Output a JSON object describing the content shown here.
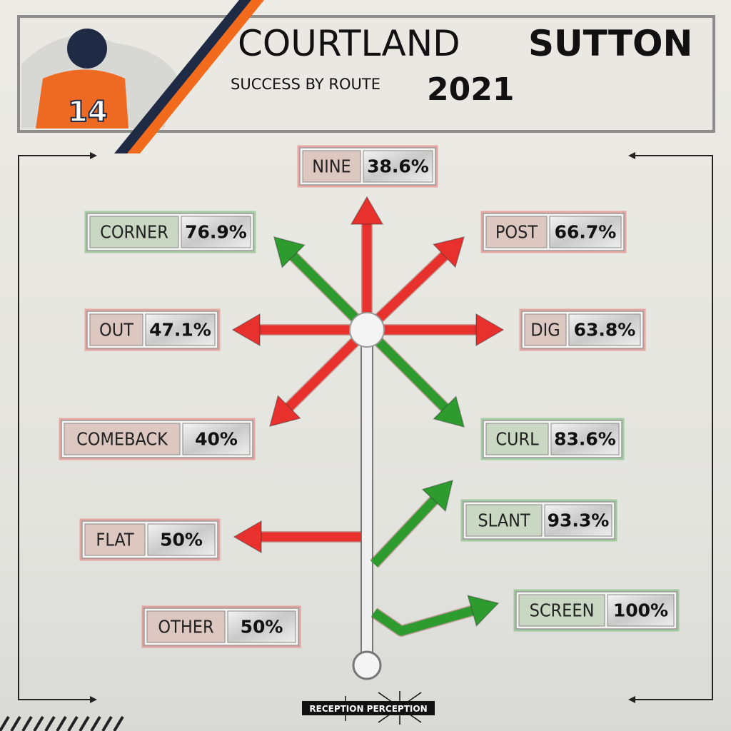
{
  "header": {
    "first_name": "COURTLAND",
    "last_name": "SUTTON",
    "subtitle": "SUCCESS BY ROUTE",
    "year": "2021"
  },
  "routes": [
    {
      "name": "NINE",
      "success": "38.6%",
      "color": "#e8302c"
    },
    {
      "name": "CORNER",
      "success": "76.9%",
      "color": "#2e9b2e"
    },
    {
      "name": "POST",
      "success": "66.7%",
      "color": "#e8302c"
    },
    {
      "name": "OUT",
      "success": "47.1%",
      "color": "#e8302c"
    },
    {
      "name": "DIG",
      "success": "63.8%",
      "color": "#e8302c"
    },
    {
      "name": "COMEBACK",
      "success": "40%",
      "color": "#e8302c"
    },
    {
      "name": "CURL",
      "success": "83.6%",
      "color": "#2e9b2e"
    },
    {
      "name": "SLANT",
      "success": "93.3%",
      "color": "#2e9b2e"
    },
    {
      "name": "FLAT",
      "success": "50%",
      "color": "#e8302c"
    },
    {
      "name": "SCREEN",
      "success": "100%",
      "color": "#2e9b2e"
    },
    {
      "name": "OTHER",
      "success": "50%",
      "color": "#e8302c"
    }
  ],
  "footer": {
    "logo": "RECEPTION PERCEPTION"
  }
}
